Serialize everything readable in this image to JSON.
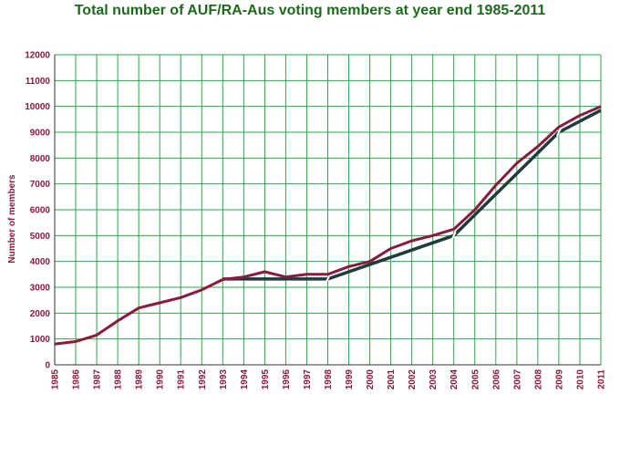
{
  "chart_data": {
    "type": "line",
    "title": "Total number of AUF/RA-Aus voting members at year end 1985-2011",
    "xlabel": "",
    "ylabel": "Number of members",
    "ylim": [
      0,
      12000
    ],
    "yticks": [
      0,
      1000,
      2000,
      3000,
      4000,
      5000,
      6000,
      7000,
      8000,
      9000,
      10000,
      11000,
      12000
    ],
    "categories": [
      "1985",
      "1986",
      "1987",
      "1988",
      "1989",
      "1990",
      "1991",
      "1992",
      "1993",
      "1994",
      "1995",
      "1996",
      "1997",
      "1998",
      "1999",
      "2000",
      "2001",
      "2002",
      "2003",
      "2004",
      "2005",
      "2006",
      "2007",
      "2008",
      "2009",
      "2010",
      "2011"
    ],
    "grid": true,
    "series": [
      {
        "color": "#8b1a3a",
        "values": [
          800,
          900,
          1150,
          1700,
          2200,
          2400,
          2600,
          2900,
          3300,
          3400,
          3600,
          3400,
          3500,
          3500,
          3800,
          4000,
          4500,
          4800,
          5000,
          5250,
          6000,
          6950,
          7800,
          8450,
          9200,
          9650,
          10000
        ]
      },
      {
        "color": "#1f3b3b",
        "segments": [
          {
            "x": [
              "1993",
              "1998"
            ],
            "y": [
              3320,
              3320
            ]
          },
          {
            "x": [
              "1998",
              "2004"
            ],
            "y": [
              3320,
              5000
            ]
          },
          {
            "x": [
              "2004",
              "2009"
            ],
            "y": [
              5000,
              9000
            ]
          },
          {
            "x": [
              "2009",
              "2011"
            ],
            "y": [
              9000,
              9850
            ]
          }
        ]
      }
    ],
    "colors": {
      "title": "#1a6b1a",
      "grid": "#2aa84a",
      "axis_text": "#8b1a3a"
    }
  }
}
